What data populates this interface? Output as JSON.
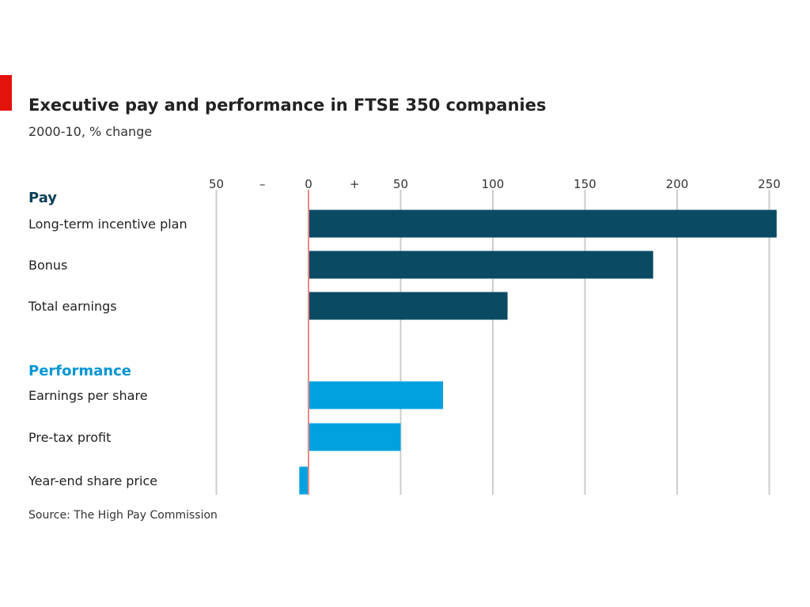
{
  "chart_data": {
    "type": "bar",
    "orientation": "horizontal",
    "title": "Executive pay and performance in FTSE 350 companies",
    "subtitle": "2000-10, % change",
    "source": "Source: The High Pay Commission",
    "xlim": [
      -50,
      250
    ],
    "x_ticks": [
      {
        "value": -50,
        "label": "50"
      },
      {
        "value": 0,
        "label": "0"
      },
      {
        "value": 50,
        "label": "50"
      },
      {
        "value": 100,
        "label": "100"
      },
      {
        "value": 150,
        "label": "150"
      },
      {
        "value": 200,
        "label": "200"
      },
      {
        "value": 250,
        "label": "250"
      }
    ],
    "sign_markers": {
      "negative": "–",
      "positive": "+"
    },
    "grid": true,
    "groups": [
      {
        "name": "Pay",
        "color": "#0b4a63",
        "label_color": "#0b3f58",
        "items": [
          {
            "label": "Long-term incentive plan",
            "value": 254
          },
          {
            "label": "Bonus",
            "value": 187
          },
          {
            "label": "Total earnings",
            "value": 108
          }
        ]
      },
      {
        "name": "Performance",
        "color": "#00a1de",
        "label_color": "#0095d3",
        "items": [
          {
            "label": "Earnings per share",
            "value": 73
          },
          {
            "label": "Pre-tax profit",
            "value": 50
          },
          {
            "label": "Year-end share price",
            "value": -5
          }
        ]
      }
    ],
    "colors": {
      "accent": "#e3120b",
      "grid": "#cccccc",
      "zero_line": "#e88a8a"
    }
  }
}
